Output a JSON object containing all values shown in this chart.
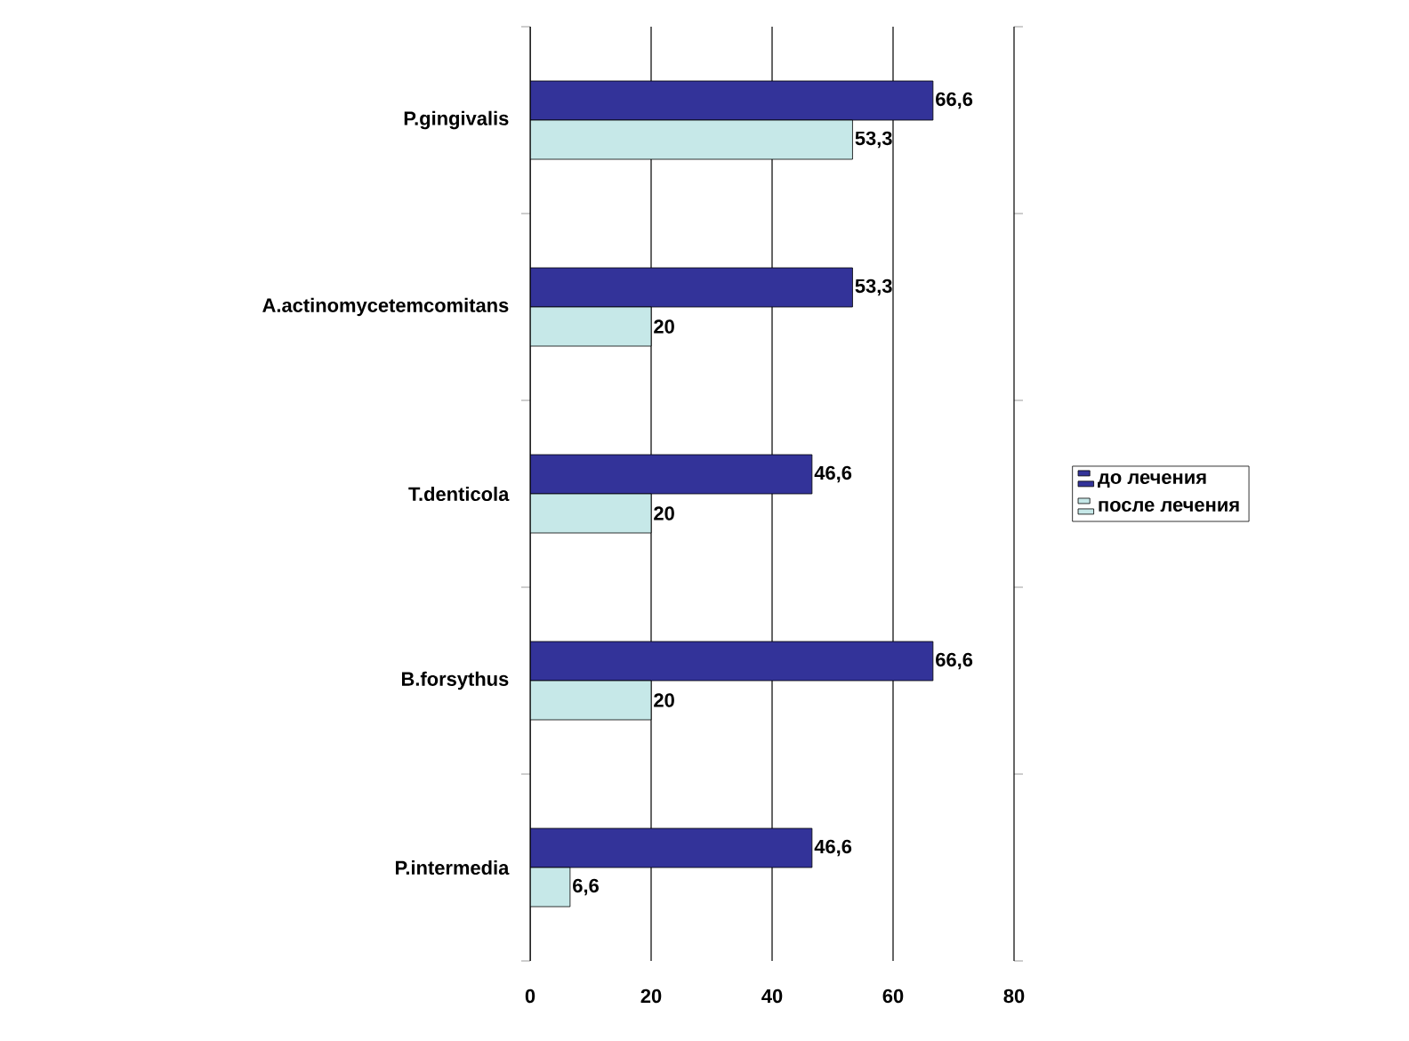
{
  "chart_data": {
    "type": "bar",
    "orientation": "horizontal",
    "categories": [
      "P.gingivalis",
      "A.actinomycetemcomitans",
      "T.denticola",
      "B.forsythus",
      "P.intermedia"
    ],
    "series": [
      {
        "name": "до лечения",
        "color": "#333399",
        "values": [
          66.6,
          53.3,
          46.6,
          66.6,
          46.6
        ],
        "value_labels": [
          "66,6",
          "53,3",
          "46,6",
          "66,6",
          "46,6"
        ]
      },
      {
        "name": "после лечения",
        "color": "#c6e8e8",
        "values": [
          53.3,
          20,
          20,
          20,
          6.6
        ],
        "value_labels": [
          "53,3",
          "20",
          "20",
          "20",
          "6,6"
        ]
      }
    ],
    "xlim": [
      0,
      80
    ],
    "xticks": [
      0,
      20,
      40,
      60,
      80
    ],
    "grid": "x",
    "legend": "right"
  }
}
